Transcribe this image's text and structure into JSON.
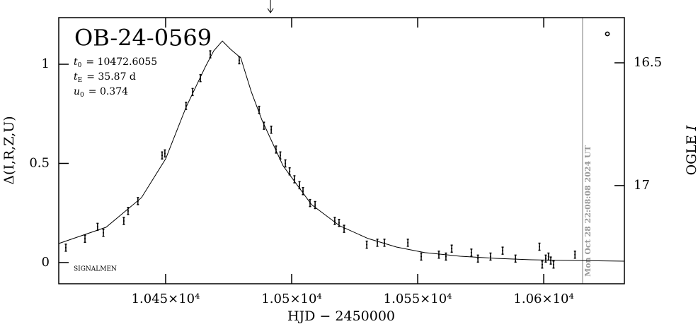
{
  "chart_data": {
    "type": "scatter",
    "title": "OB-24-0569",
    "parameters": [
      {
        "symbol": "t",
        "subscript": "0",
        "text": "= 10472.6055"
      },
      {
        "symbol": "t",
        "subscript": "E",
        "text": "= 35.87 d"
      },
      {
        "symbol": "u",
        "subscript": "0",
        "text": "= 0.374"
      }
    ],
    "xlabel": "HJD − 2450000",
    "ylabel": "Δ(I,R,Z,U)",
    "y2label": {
      "text": "OGLE",
      "band": "I"
    },
    "footnote": "SIGNALMEN",
    "timestamp": "Mon Oct 28 22:08:08 2024 UT",
    "now_x": 10615.4,
    "arrow_x": 10491.6,
    "color": "#000000",
    "x": [
      10410.4,
      10418.0,
      10423.0,
      10425.3,
      10433.4,
      10435.1,
      10439.0,
      10448.6,
      10449.7,
      10458.1,
      10460.7,
      10463.8,
      10467.7,
      10479.2,
      10487.1,
      10489.0,
      10491.9,
      10493.8,
      10495.5,
      10497.5,
      10499.2,
      10501.1,
      10503.1,
      10504.5,
      10507.3,
      10509.3,
      10517.1,
      10518.8,
      10520.8,
      10529.8,
      10534.0,
      10536.8,
      10546.1,
      10551.4,
      10558.4,
      10561.2,
      10563.5,
      10571.3,
      10573.9,
      10578.9,
      10583.7,
      10588.8,
      10598.3,
      10599.4,
      10600.8,
      10601.9,
      10602.8,
      10603.9,
      10612.4
    ],
    "values": [
      0.075,
      0.12,
      0.18,
      0.15,
      0.21,
      0.26,
      0.31,
      0.54,
      0.55,
      0.79,
      0.86,
      0.93,
      1.05,
      1.02,
      0.77,
      0.69,
      0.67,
      0.57,
      0.54,
      0.5,
      0.46,
      0.42,
      0.39,
      0.36,
      0.3,
      0.29,
      0.21,
      0.2,
      0.17,
      0.09,
      0.1,
      0.1,
      0.1,
      0.03,
      0.04,
      0.03,
      0.07,
      0.05,
      0.02,
      0.03,
      0.06,
      0.02,
      0.08,
      -0.01,
      0.02,
      0.03,
      0.01,
      -0.01,
      0.04
    ],
    "model": {
      "x": [
        10407.6,
        10426.4,
        10440.4,
        10450.0,
        10458.1,
        10465.7,
        10469.1,
        10472.5,
        10475.8,
        10479.8,
        10484.0,
        10488.2,
        10496.6,
        10507.9,
        10519.1,
        10530.3,
        10541.6,
        10552.8,
        10566.9,
        10580.9,
        10595.0,
        10609.0,
        10632.0
      ],
      "values": [
        0.096,
        0.178,
        0.327,
        0.523,
        0.783,
        0.986,
        1.068,
        1.117,
        1.075,
        1.032,
        0.861,
        0.719,
        0.488,
        0.292,
        0.185,
        0.121,
        0.078,
        0.05,
        0.032,
        0.021,
        0.014,
        0.011,
        0.007
      ]
    },
    "xlim": [
      10407.6,
      10632.0
    ],
    "xticks": [
      {
        "value": 10450,
        "label": "1.045×10⁴"
      },
      {
        "value": 10500,
        "label": "1.05×10⁴"
      },
      {
        "value": 10550,
        "label": "1.055×10⁴"
      },
      {
        "value": 10600,
        "label": "1.06×10⁴"
      }
    ],
    "ylim": [
      -0.107,
      1.235
    ],
    "yticks": [
      0,
      0.5,
      1
    ],
    "y2lim": [
      17.4,
      16.316
    ],
    "y2ticks": [
      16.5,
      17
    ]
  }
}
